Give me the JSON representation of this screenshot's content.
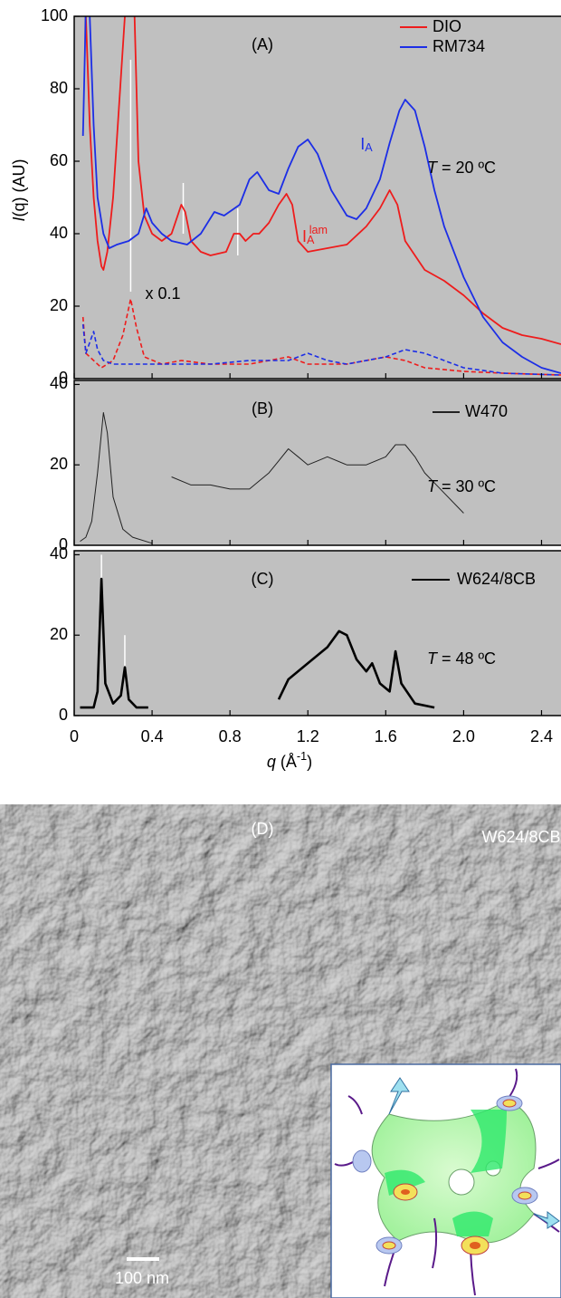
{
  "chart_data": [
    {
      "type": "line",
      "title": "(A)",
      "xlim": [
        0,
        2.5
      ],
      "ylim": [
        0,
        100
      ],
      "yticks": [
        0,
        20,
        40,
        60,
        80,
        100
      ],
      "y_label": {
        "italic": "I",
        "text": "(q) (AU)"
      },
      "legend": "upper right",
      "series": [
        {
          "name": "DIO",
          "color": "#ee1c1c",
          "dashed": false,
          "line_width": 1.8,
          "x": [
            0.05,
            0.06,
            0.08,
            0.1,
            0.12,
            0.14,
            0.15,
            0.17,
            0.2,
            0.23,
            0.26,
            0.29,
            0.31,
            0.33,
            0.36,
            0.4,
            0.45,
            0.5,
            0.55,
            0.57,
            0.6,
            0.65,
            0.7,
            0.78,
            0.82,
            0.85,
            0.88,
            0.92,
            0.95,
            1.0,
            1.05,
            1.09,
            1.12,
            1.15,
            1.2,
            1.3,
            1.4,
            1.5,
            1.57,
            1.62,
            1.66,
            1.7,
            1.8,
            1.9,
            2.0,
            2.1,
            2.2,
            2.3,
            2.4,
            2.5
          ],
          "values": [
            120,
            100,
            70,
            50,
            38,
            31,
            30,
            35,
            50,
            75,
            100,
            130,
            100,
            60,
            45,
            40,
            38,
            40,
            48,
            46,
            38,
            35,
            34,
            35,
            40,
            40,
            38,
            40,
            40,
            43,
            48,
            51,
            48,
            38,
            35,
            36,
            37,
            42,
            47,
            52,
            48,
            38,
            30,
            27,
            23,
            18,
            14,
            12,
            11,
            9.5
          ]
        },
        {
          "name": "RM734",
          "color": "#1c2ee6",
          "dashed": false,
          "line_width": 1.8,
          "x": [
            0.045,
            0.055,
            0.065,
            0.08,
            0.1,
            0.12,
            0.15,
            0.18,
            0.22,
            0.28,
            0.33,
            0.37,
            0.4,
            0.45,
            0.5,
            0.58,
            0.65,
            0.72,
            0.77,
            0.85,
            0.9,
            0.94,
            1.0,
            1.05,
            1.1,
            1.15,
            1.2,
            1.25,
            1.32,
            1.4,
            1.45,
            1.5,
            1.57,
            1.62,
            1.67,
            1.7,
            1.75,
            1.8,
            1.85,
            1.9,
            2.0,
            2.1,
            2.2,
            2.3,
            2.4,
            2.5
          ],
          "values": [
            67,
            90,
            120,
            100,
            70,
            50,
            40,
            36,
            37,
            38,
            40,
            47,
            43,
            40,
            38,
            37,
            40,
            46,
            45,
            48,
            55,
            57,
            52,
            51,
            58,
            64,
            66,
            62,
            52,
            45,
            44,
            47,
            55,
            65,
            74,
            77,
            74,
            64,
            52,
            42,
            28,
            17,
            10,
            6,
            3,
            1.5
          ]
        },
        {
          "color": "#ee1c1c",
          "dashed": true,
          "line_width": 1.6,
          "x": [
            0.045,
            0.06,
            0.1,
            0.14,
            0.2,
            0.25,
            0.29,
            0.32,
            0.36,
            0.45,
            0.55,
            0.7,
            0.9,
            1.1,
            1.2,
            1.4,
            1.6,
            1.7,
            1.8,
            2.0,
            2.2,
            2.5
          ],
          "values": [
            17,
            7,
            5,
            3,
            5,
            12,
            22,
            14,
            6,
            4,
            5,
            4,
            4,
            6,
            4,
            4,
            6,
            5,
            3,
            2,
            1.5,
            1
          ]
        },
        {
          "color": "#1c2ee6",
          "dashed": true,
          "line_width": 1.6,
          "x": [
            0.045,
            0.06,
            0.08,
            0.1,
            0.12,
            0.15,
            0.2,
            0.3,
            0.5,
            0.7,
            0.9,
            1.0,
            1.1,
            1.2,
            1.3,
            1.4,
            1.6,
            1.7,
            1.8,
            1.9,
            2.0,
            2.2,
            2.5
          ],
          "values": [
            15,
            7,
            10,
            13,
            8,
            5,
            4,
            4,
            4,
            4,
            5,
            5,
            5,
            7,
            5,
            4,
            6,
            8,
            7,
            5,
            3,
            1.5,
            1
          ]
        }
      ],
      "markers": [
        {
          "x": 0.29,
          "y": [
            24,
            88
          ]
        },
        {
          "x": 0.56,
          "y": [
            40,
            54
          ]
        },
        {
          "x": 0.84,
          "y": [
            34,
            47
          ]
        }
      ],
      "annotations": [
        {
          "italic": "T",
          "text": " = 20 ºC"
        },
        {
          "text": "I",
          "sub": "A",
          "color": "#1c2ee6"
        },
        {
          "text": "I",
          "sub": "A",
          "sup": "lam",
          "color": "#ee1c1c"
        },
        {
          "text": "x 0.1"
        }
      ]
    },
    {
      "type": "line",
      "title": "(B)",
      "xlim": [
        0,
        2.5
      ],
      "ylim": [
        0,
        41
      ],
      "yticks": [
        0,
        20,
        40
      ],
      "legend": "upper right",
      "series": [
        {
          "name": "W470",
          "color": "#222222",
          "dashed": false,
          "line_width": 1,
          "x": [
            0.03,
            0.06,
            0.09,
            0.12,
            0.15,
            0.17,
            0.2,
            0.25,
            0.3,
            0.4,
            0.45,
            0.5,
            0.6,
            0.7,
            0.8,
            0.9,
            0.95,
            1.0,
            1.05,
            1.1,
            1.15,
            1.2,
            1.25,
            1.3,
            1.4,
            1.5,
            1.6,
            1.65,
            1.7,
            1.75,
            1.8,
            1.9,
            2.0
          ],
          "values": [
            1,
            2,
            6,
            18,
            33,
            28,
            12,
            4,
            2,
            0.5,
            null,
            17,
            15,
            15,
            14,
            14,
            16,
            18,
            21,
            24,
            22,
            20,
            21,
            22,
            20,
            20,
            22,
            25,
            25,
            22,
            18,
            13,
            8
          ]
        }
      ],
      "annotations": [
        {
          "italic": "T",
          "text": " = 30 ºC"
        }
      ]
    },
    {
      "type": "line",
      "title": "(C)",
      "xlim": [
        0,
        2.5
      ],
      "ylim": [
        0,
        41
      ],
      "yticks": [
        0,
        20,
        40
      ],
      "xticks": [
        0,
        0.4,
        0.8,
        1.2,
        1.6,
        {
          "value": 2,
          "label": "2.0"
        },
        2.4
      ],
      "x_label": {
        "italic": "q",
        "text": " (Å",
        "sup": "-1",
        "tail": ")"
      },
      "legend": "upper right",
      "series": [
        {
          "name": "W624/8CB",
          "color": "#000000",
          "dashed": false,
          "line_width": 2.6,
          "x": [
            0.03,
            0.1,
            0.12,
            0.14,
            0.16,
            0.2,
            0.24,
            0.26,
            0.28,
            0.32,
            0.38,
            0.45,
            1.05,
            1.1,
            1.2,
            1.3,
            1.36,
            1.4,
            1.45,
            1.5,
            1.53,
            1.57,
            1.62,
            1.65,
            1.68,
            1.75,
            1.85
          ],
          "values": [
            2,
            2,
            6,
            34,
            8,
            3,
            5,
            12,
            4,
            2,
            2,
            null,
            4,
            9,
            13,
            17,
            21,
            20,
            14,
            11,
            13,
            8,
            6,
            16,
            8,
            3,
            2
          ]
        }
      ],
      "markers": [
        {
          "x": 0.14,
          "y": [
            34,
            40
          ]
        },
        {
          "x": 0.26,
          "y": [
            12,
            20
          ]
        }
      ],
      "annotations": [
        {
          "italic": "T",
          "text": " = 48 ºC"
        }
      ]
    }
  ],
  "panel_d": {
    "label": "(D)",
    "sample": "W624/8CB",
    "scale_bar": "100 nm"
  }
}
